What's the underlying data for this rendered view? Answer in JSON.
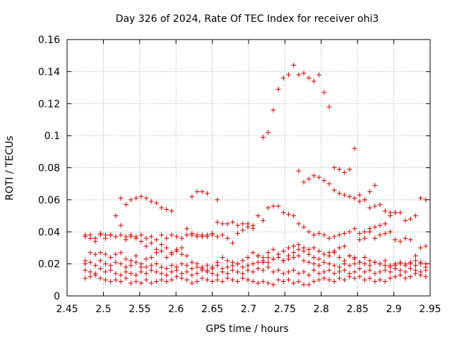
{
  "chart_data": {
    "type": "scatter",
    "title": "Day 326 of 2024, Rate Of TEC Index for receiver ohi3",
    "xlabel": "GPS time / hours",
    "ylabel": "ROTI / TECUs",
    "xlim": [
      2.45,
      2.95
    ],
    "ylim": [
      0,
      0.16
    ],
    "xticks": [
      "2.45",
      "2.5",
      "2.55",
      "2.6",
      "2.65",
      "2.7",
      "2.75",
      "2.8",
      "2.85",
      "2.9",
      "2.95"
    ],
    "yticks": [
      "0",
      "0.02",
      "0.04",
      "0.06",
      "0.08",
      "0.1",
      "0.12",
      "0.14",
      "0.16"
    ],
    "grid": true,
    "marker_color": "#cc0000",
    "grid_color": "#a0a0a0",
    "series": [
      {
        "x": [
          2.475,
          2.482,
          2.489,
          2.496,
          2.503,
          2.51,
          2.517,
          2.524,
          2.531,
          2.538,
          2.545,
          2.552,
          2.559,
          2.566,
          2.573,
          2.58,
          2.587,
          2.594,
          2.601,
          2.608,
          2.615,
          2.622,
          2.629,
          2.636,
          2.643,
          2.65,
          2.657,
          2.664,
          2.671,
          2.678,
          2.685,
          2.692,
          2.699,
          2.706,
          2.713,
          2.72,
          2.727,
          2.734,
          2.741,
          2.748,
          2.755,
          2.762,
          2.769,
          2.776,
          2.783,
          2.79,
          2.797,
          2.804,
          2.811,
          2.818,
          2.825,
          2.832,
          2.839,
          2.846,
          2.853,
          2.86,
          2.867,
          2.874,
          2.881,
          2.888,
          2.895,
          2.902,
          2.909,
          2.916,
          2.923,
          2.93,
          2.937,
          2.944
        ],
        "y": [
          0.011,
          0.012,
          0.013,
          0.011,
          0.01,
          0.009,
          0.01,
          0.009,
          0.011,
          0.008,
          0.009,
          0.008,
          0.01,
          0.008,
          0.009,
          0.01,
          0.009,
          0.01,
          0.012,
          0.011,
          0.01,
          0.008,
          0.009,
          0.011,
          0.01,
          0.009,
          0.01,
          0.009,
          0.011,
          0.01,
          0.009,
          0.011,
          0.01,
          0.009,
          0.008,
          0.009,
          0.008,
          0.007,
          0.01,
          0.009,
          0.01,
          0.008,
          0.009,
          0.007,
          0.007,
          0.009,
          0.01,
          0.011,
          0.01,
          0.009,
          0.011,
          0.01,
          0.012,
          0.011,
          0.012,
          0.01,
          0.011,
          0.009,
          0.01,
          0.009,
          0.011,
          0.012,
          0.013,
          0.011,
          0.012,
          0.014,
          0.013,
          0.012
        ]
      },
      {
        "x": [
          2.475,
          2.482,
          2.489,
          2.496,
          2.503,
          2.51,
          2.517,
          2.524,
          2.531,
          2.538,
          2.545,
          2.552,
          2.559,
          2.566,
          2.573,
          2.58,
          2.587,
          2.594,
          2.601,
          2.608,
          2.615,
          2.622,
          2.629,
          2.636,
          2.643,
          2.65,
          2.657,
          2.664,
          2.671,
          2.678,
          2.685,
          2.692,
          2.699,
          2.706,
          2.713,
          2.72,
          2.727,
          2.734,
          2.741,
          2.748,
          2.755,
          2.762,
          2.769,
          2.776,
          2.783,
          2.79,
          2.797,
          2.804,
          2.811,
          2.818,
          2.825,
          2.832,
          2.839,
          2.846,
          2.853,
          2.86,
          2.867,
          2.874,
          2.881,
          2.888,
          2.895,
          2.902,
          2.909,
          2.916,
          2.923,
          2.93,
          2.937,
          2.944
        ],
        "y": [
          0.016,
          0.015,
          0.014,
          0.017,
          0.015,
          0.016,
          0.014,
          0.013,
          0.015,
          0.014,
          0.013,
          0.015,
          0.014,
          0.016,
          0.015,
          0.014,
          0.013,
          0.015,
          0.016,
          0.014,
          0.015,
          0.013,
          0.014,
          0.016,
          0.015,
          0.014,
          0.013,
          0.015,
          0.014,
          0.016,
          0.015,
          0.014,
          0.016,
          0.015,
          0.017,
          0.016,
          0.018,
          0.015,
          0.016,
          0.014,
          0.015,
          0.016,
          0.014,
          0.015,
          0.013,
          0.016,
          0.014,
          0.015,
          0.016,
          0.014,
          0.015,
          0.016,
          0.014,
          0.015,
          0.017,
          0.015,
          0.016,
          0.014,
          0.015,
          0.016,
          0.015,
          0.017,
          0.016,
          0.015,
          0.017,
          0.016,
          0.015,
          0.016
        ]
      },
      {
        "x": [
          2.475,
          2.482,
          2.489,
          2.496,
          2.503,
          2.51,
          2.517,
          2.524,
          2.531,
          2.538,
          2.545,
          2.552,
          2.559,
          2.566,
          2.573,
          2.58,
          2.587,
          2.594,
          2.601,
          2.608,
          2.615,
          2.622,
          2.629,
          2.636,
          2.643,
          2.65,
          2.657,
          2.664,
          2.671,
          2.678,
          2.685,
          2.692,
          2.699,
          2.706,
          2.713,
          2.72,
          2.727,
          2.734,
          2.741,
          2.748,
          2.755,
          2.762,
          2.769,
          2.776,
          2.783,
          2.79,
          2.797,
          2.804,
          2.811,
          2.818,
          2.825,
          2.832,
          2.839,
          2.846,
          2.853,
          2.86,
          2.867,
          2.874,
          2.881,
          2.888,
          2.895,
          2.902,
          2.909,
          2.916,
          2.923,
          2.93,
          2.937,
          2.944
        ],
        "y": [
          0.02,
          0.021,
          0.019,
          0.022,
          0.02,
          0.019,
          0.021,
          0.02,
          0.018,
          0.019,
          0.021,
          0.02,
          0.018,
          0.019,
          0.02,
          0.018,
          0.017,
          0.019,
          0.018,
          0.02,
          0.019,
          0.017,
          0.018,
          0.017,
          0.016,
          0.018,
          0.019,
          0.017,
          0.018,
          0.019,
          0.02,
          0.018,
          0.019,
          0.02,
          0.021,
          0.022,
          0.021,
          0.023,
          0.024,
          0.022,
          0.023,
          0.024,
          0.025,
          0.022,
          0.021,
          0.02,
          0.019,
          0.021,
          0.02,
          0.019,
          0.018,
          0.02,
          0.019,
          0.02,
          0.021,
          0.02,
          0.019,
          0.021,
          0.02,
          0.019,
          0.018,
          0.019,
          0.02,
          0.019,
          0.02,
          0.019,
          0.02,
          0.018
        ]
      },
      {
        "x": [
          2.475,
          2.482,
          2.489,
          2.496,
          2.503,
          2.51,
          2.517,
          2.524,
          2.531,
          2.538,
          2.545,
          2.552,
          2.559,
          2.566,
          2.573,
          2.58,
          2.587,
          2.594,
          2.601,
          2.608,
          2.615,
          2.622,
          2.629,
          2.636,
          2.643,
          2.65,
          2.657,
          2.664,
          2.671,
          2.678,
          2.685,
          2.692,
          2.699,
          2.706,
          2.713,
          2.72,
          2.727,
          2.734,
          2.741,
          2.748,
          2.755,
          2.762,
          2.769,
          2.776,
          2.783,
          2.79,
          2.797,
          2.804,
          2.811,
          2.818,
          2.825,
          2.832,
          2.839,
          2.846,
          2.853,
          2.86,
          2.867,
          2.874,
          2.881,
          2.888,
          2.895,
          2.902,
          2.909,
          2.916,
          2.923,
          2.93,
          2.937,
          2.944
        ],
        "y": [
          0.022,
          0.027,
          0.026,
          0.027,
          0.026,
          0.024,
          0.026,
          0.027,
          0.023,
          0.022,
          0.025,
          0.018,
          0.023,
          0.024,
          0.027,
          0.028,
          0.024,
          0.026,
          0.028,
          0.026,
          0.025,
          0.021,
          0.02,
          0.018,
          0.019,
          0.017,
          0.021,
          0.024,
          0.022,
          0.021,
          0.02,
          0.022,
          0.024,
          0.027,
          0.025,
          0.024,
          0.027,
          0.029,
          0.026,
          0.028,
          0.03,
          0.027,
          0.029,
          0.028,
          0.026,
          0.024,
          0.023,
          0.026,
          0.025,
          0.027,
          0.024,
          0.022,
          0.025,
          0.023,
          0.021,
          0.024,
          0.022,
          0.021,
          0.02,
          0.022,
          0.019,
          0.02,
          0.021,
          0.02,
          0.021,
          0.022,
          0.021,
          0.02
        ]
      },
      {
        "x": [
          2.475,
          2.482,
          2.489,
          2.496,
          2.503,
          2.51,
          2.517,
          2.524,
          2.531,
          2.538,
          2.545,
          2.552,
          2.559,
          2.566,
          2.573,
          2.58,
          2.587,
          2.594,
          2.601,
          2.608,
          2.615,
          2.622,
          2.629,
          2.636,
          2.643,
          2.65,
          2.657,
          2.664,
          2.671,
          2.678,
          2.685,
          2.692,
          2.699,
          2.706,
          2.713,
          2.72,
          2.727,
          2.734,
          2.741,
          2.748,
          2.755,
          2.762,
          2.769,
          2.776,
          2.783,
          2.79,
          2.797,
          2.804,
          2.811,
          2.818,
          2.825,
          2.832,
          2.839,
          2.846,
          2.853,
          2.86,
          2.867,
          2.874,
          2.881,
          2.888,
          2.895,
          2.902,
          2.909,
          2.916,
          2.923,
          2.93,
          2.937,
          2.944
        ],
        "y": [
          0.037,
          0.036,
          0.034,
          0.038,
          0.036,
          0.038,
          0.037,
          0.038,
          0.035,
          0.037,
          0.036,
          0.034,
          0.031,
          0.033,
          0.029,
          0.032,
          0.03,
          0.027,
          0.029,
          0.03,
          0.042,
          0.038,
          0.037,
          0.038,
          0.037,
          0.038,
          0.037,
          0.038,
          0.036,
          0.033,
          0.039,
          0.041,
          0.043,
          0.042,
          0.025,
          0.021,
          0.024,
          0.023,
          0.026,
          0.022,
          0.025,
          0.031,
          0.032,
          0.03,
          0.029,
          0.03,
          0.028,
          0.026,
          0.027,
          0.028,
          0.03,
          0.031,
          0.025,
          0.024,
          0.035,
          0.036,
          0.04,
          0.036,
          0.038,
          0.039,
          0.04,
          0.035,
          0.034,
          0.036,
          0.035,
          0.025,
          0.03,
          0.031
        ]
      },
      {
        "x": [
          2.475,
          2.482,
          2.489,
          2.496,
          2.503,
          2.51,
          2.517,
          2.524,
          2.531,
          2.538,
          2.545,
          2.552,
          2.559,
          2.566,
          2.573,
          2.58,
          2.587,
          2.594,
          2.601,
          2.608,
          2.615,
          2.622,
          2.629,
          2.636,
          2.643,
          2.65,
          2.657,
          2.664,
          2.671,
          2.678,
          2.685,
          2.692,
          2.699,
          2.706,
          2.713,
          2.72,
          2.727,
          2.734,
          2.741,
          2.748,
          2.755,
          2.762,
          2.769,
          2.776,
          2.783,
          2.79,
          2.797,
          2.804,
          2.811,
          2.818,
          2.825,
          2.832,
          2.839,
          2.846,
          2.853,
          2.86,
          2.867,
          2.874,
          2.881,
          2.888,
          2.895,
          2.902,
          2.909,
          2.916,
          2.923,
          2.93,
          2.937,
          2.944
        ],
        "y": [
          0.038,
          0.038,
          0.036,
          0.039,
          0.038,
          0.038,
          0.05,
          0.044,
          0.037,
          0.038,
          0.037,
          0.038,
          0.036,
          0.037,
          0.035,
          0.038,
          0.036,
          0.038,
          0.037,
          0.036,
          0.038,
          0.039,
          0.038,
          0.037,
          0.038,
          0.039,
          0.046,
          0.045,
          0.045,
          0.046,
          0.044,
          0.045,
          0.045,
          0.044,
          0.05,
          0.047,
          0.055,
          0.056,
          0.056,
          0.052,
          0.051,
          0.05,
          0.045,
          0.043,
          0.04,
          0.038,
          0.039,
          0.038,
          0.036,
          0.037,
          0.038,
          0.039,
          0.04,
          0.042,
          0.039,
          0.04,
          0.042,
          0.043,
          0.044,
          0.045,
          0.05,
          0.052,
          0.052,
          0.047,
          0.048,
          0.05,
          0.061,
          0.06
        ]
      },
      {
        "x": [
          2.524,
          2.531,
          2.538,
          2.545,
          2.552,
          2.559,
          2.566,
          2.573,
          2.58,
          2.587,
          2.594,
          2.622,
          2.629,
          2.636,
          2.643,
          2.657,
          2.72,
          2.727,
          2.734,
          2.741,
          2.748,
          2.755,
          2.762,
          2.769,
          2.776,
          2.783,
          2.79,
          2.797,
          2.804,
          2.811,
          2.818,
          2.825,
          2.832,
          2.839,
          2.846,
          2.853,
          2.86,
          2.867,
          2.874,
          2.881,
          2.888,
          2.895,
          2.902
        ],
        "y": [
          0.061,
          0.057,
          0.06,
          0.061,
          0.062,
          0.061,
          0.059,
          0.058,
          0.055,
          0.054,
          0.053,
          0.062,
          0.065,
          0.065,
          0.064,
          0.06,
          0.099,
          0.102,
          0.116,
          0.129,
          0.136,
          0.138,
          0.144,
          0.078,
          0.071,
          0.073,
          0.075,
          0.074,
          0.072,
          0.07,
          0.066,
          0.064,
          0.063,
          0.062,
          0.061,
          0.059,
          0.06,
          0.055,
          0.056,
          0.057,
          0.053,
          0.052,
          0.052
        ]
      },
      {
        "x": [
          2.769,
          2.776,
          2.783,
          2.79,
          2.797,
          2.804,
          2.811,
          2.818,
          2.825,
          2.832,
          2.839,
          2.846,
          2.853,
          2.86,
          2.867,
          2.874
        ],
        "y": [
          0.138,
          0.139,
          0.136,
          0.134,
          0.138,
          0.127,
          0.118,
          0.08,
          0.079,
          0.077,
          0.079,
          0.092,
          0.063,
          0.06,
          0.065,
          0.069
        ]
      }
    ]
  }
}
